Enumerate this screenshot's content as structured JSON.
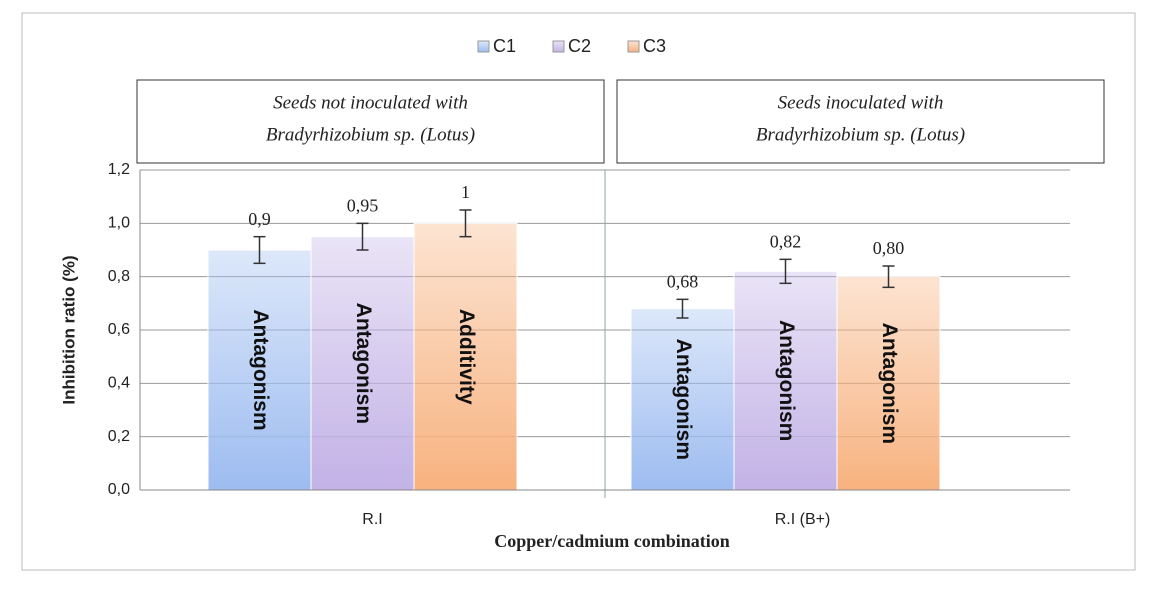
{
  "chart_data": {
    "type": "bar",
    "categories": [
      "R.I",
      "R.I (B+)"
    ],
    "series": [
      {
        "name": "C1",
        "color": "#9dbcf0",
        "values": [
          0.9,
          0.68
        ],
        "errors": [
          0.05,
          0.035
        ],
        "value_labels": [
          "0,9",
          "0,68"
        ],
        "bar_labels": [
          "Antagonism",
          "Antagonism"
        ]
      },
      {
        "name": "C2",
        "color": "#c2b2e6",
        "values": [
          0.95,
          0.82
        ],
        "errors": [
          0.05,
          0.045
        ],
        "value_labels": [
          "0,95",
          "0,82"
        ],
        "bar_labels": [
          "Antagonism",
          "Antagonism"
        ]
      },
      {
        "name": "C3",
        "color": "#f7b27f",
        "values": [
          1,
          0.8
        ],
        "errors": [
          0.05,
          0.04
        ],
        "value_labels": [
          "1",
          "0,80"
        ],
        "bar_labels": [
          "Additivity",
          "Antagonism"
        ]
      }
    ],
    "panels": [
      {
        "lines": [
          "Seeds not inoculated with",
          "Bradyrhizobium sp. (Lotus)"
        ]
      },
      {
        "lines": [
          "Seeds inoculated with",
          "Bradyrhizobium sp. (Lotus)"
        ]
      }
    ],
    "ylabel": "Inhibition ratio (%)",
    "xlabel": "Copper/cadmium combination",
    "ylim": [
      0,
      1.2
    ],
    "yticks": [
      {
        "value": 0,
        "label": "0,0"
      },
      {
        "value": 0.2,
        "label": "0,2"
      },
      {
        "value": 0.4,
        "label": "0,4"
      },
      {
        "value": 0.6,
        "label": "0,6"
      },
      {
        "value": 0.8,
        "label": "0,8"
      },
      {
        "value": 1,
        "label": "1,0"
      },
      {
        "value": 1.2,
        "label": "1,2"
      }
    ],
    "grid": true,
    "legend": "top"
  }
}
